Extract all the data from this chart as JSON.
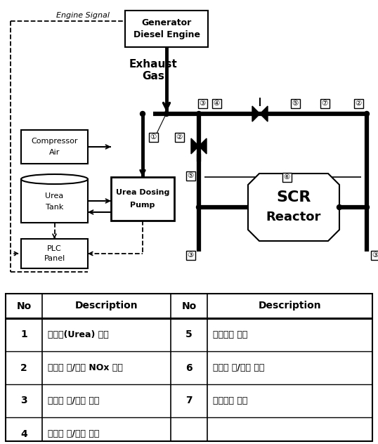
{
  "bg_color": "#ffffff",
  "table": {
    "headers": [
      "No",
      "Description",
      "No",
      "Description"
    ],
    "rows": [
      [
        "1",
        "환원제(Urea) 분사",
        "5",
        "바이패스 밸브"
      ],
      [
        "2",
        "반응기 전/후단 NOx 측정",
        "6",
        "반응기 전/후단 배압"
      ],
      [
        "3",
        "반응기 전/후단 온도",
        "7",
        "배기유량 측정"
      ],
      [
        "4",
        "반응기 전/후단 압력",
        "",
        ""
      ]
    ]
  }
}
